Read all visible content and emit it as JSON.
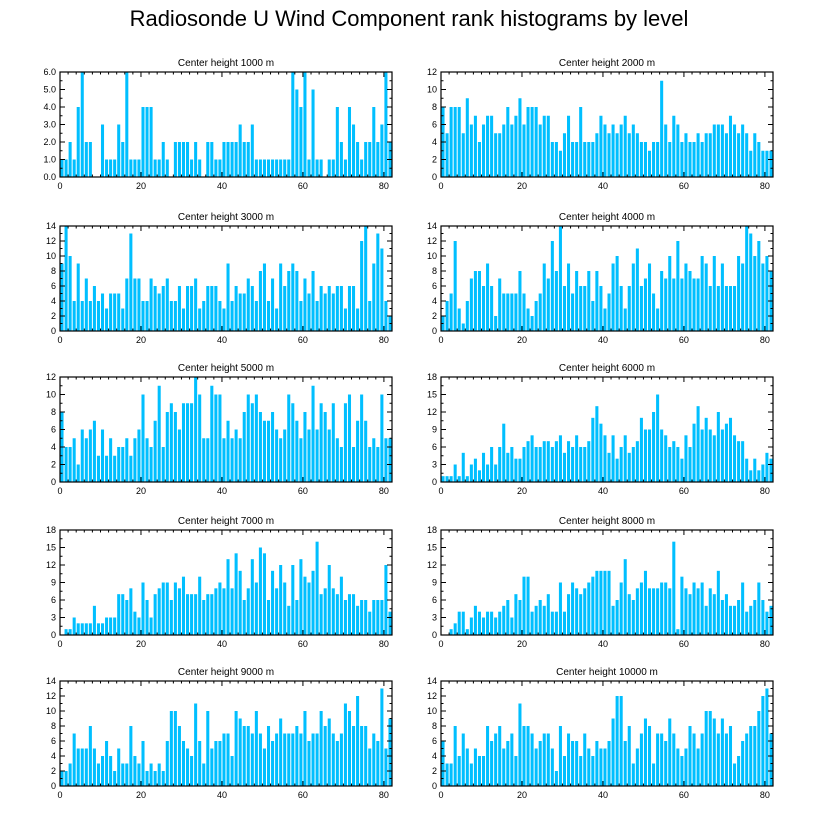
{
  "title": "Radiosonde U Wind Component rank histograms by level",
  "bar_color": "#00BFFF",
  "chart_data": [
    {
      "type": "bar",
      "title": "Center height 1000 m",
      "x": "rank 0-81",
      "ylim": [
        0,
        6
      ],
      "xticks": [
        0,
        20,
        40,
        60,
        80
      ],
      "yticks": [
        "0.0",
        "1.0",
        "2.0",
        "3.0",
        "4.0",
        "5.0",
        "6.0"
      ],
      "values": [
        1,
        1,
        2,
        1,
        4,
        6,
        2,
        2,
        0,
        0,
        3,
        1,
        1,
        1,
        3,
        2,
        6,
        1,
        1,
        1,
        4,
        4,
        4,
        1,
        1,
        2,
        1,
        0,
        2,
        2,
        2,
        2,
        1,
        2,
        1,
        0,
        2,
        2,
        1,
        1,
        2,
        2,
        2,
        2,
        3,
        2,
        2,
        3,
        1,
        1,
        1,
        1,
        1,
        1,
        1,
        1,
        1,
        6,
        5,
        4,
        6,
        1,
        5,
        1,
        1,
        0,
        1,
        1,
        4,
        2,
        1,
        4,
        3,
        2,
        1,
        2,
        2,
        4,
        2,
        3,
        6,
        2
      ]
    },
    {
      "type": "bar",
      "title": "Center height 2000 m",
      "x": "rank 0-81",
      "ylim": [
        0,
        12
      ],
      "xticks": [
        0,
        20,
        40,
        60,
        80
      ],
      "yticks": [
        "0",
        "2",
        "4",
        "6",
        "8",
        "10",
        "12"
      ],
      "values": [
        8,
        5,
        8,
        8,
        8,
        5,
        9,
        6,
        7,
        4,
        6,
        7,
        7,
        5,
        5,
        6,
        8,
        6,
        7,
        9,
        6,
        8,
        8,
        8,
        6,
        7,
        7,
        4,
        4,
        3,
        5,
        7,
        4,
        4,
        8,
        4,
        4,
        4,
        5,
        7,
        6,
        5,
        6,
        5,
        6,
        7,
        5,
        6,
        5,
        4,
        4,
        3,
        4,
        4,
        11,
        6,
        4,
        7,
        6,
        4,
        5,
        4,
        4,
        5,
        4,
        5,
        5,
        6,
        6,
        6,
        5,
        7,
        6,
        5,
        6,
        5,
        3,
        5,
        4,
        3,
        3,
        3
      ]
    },
    {
      "type": "bar",
      "title": "Center height 3000 m",
      "x": "rank 0-81",
      "ylim": [
        0,
        14
      ],
      "xticks": [
        0,
        20,
        40,
        60,
        80
      ],
      "yticks": [
        "0",
        "2",
        "4",
        "6",
        "8",
        "10",
        "12",
        "14"
      ],
      "values": [
        9,
        14,
        10,
        4,
        9,
        4,
        7,
        4,
        6,
        4,
        5,
        3,
        5,
        5,
        5,
        3,
        7,
        13,
        7,
        7,
        4,
        4,
        7,
        6,
        5,
        6,
        7,
        4,
        4,
        6,
        3,
        6,
        6,
        7,
        3,
        4,
        6,
        6,
        6,
        4,
        3,
        9,
        4,
        6,
        5,
        5,
        7,
        6,
        4,
        8,
        9,
        4,
        7,
        3,
        9,
        6,
        8,
        9,
        8,
        4,
        7,
        5,
        8,
        4,
        6,
        5,
        6,
        5,
        6,
        6,
        3,
        6,
        6,
        3,
        12,
        14,
        4,
        9,
        13,
        11,
        4,
        2
      ]
    },
    {
      "type": "bar",
      "title": "Center height 4000 m",
      "x": "rank 0-81",
      "ylim": [
        0,
        14
      ],
      "xticks": [
        0,
        20,
        40,
        60,
        80
      ],
      "yticks": [
        "0",
        "2",
        "4",
        "6",
        "8",
        "10",
        "12",
        "14"
      ],
      "values": [
        2,
        4,
        5,
        12,
        3,
        1,
        4,
        7,
        8,
        8,
        6,
        9,
        6,
        2,
        7,
        5,
        5,
        5,
        5,
        8,
        5,
        3,
        2,
        4,
        5,
        9,
        7,
        12,
        8,
        14,
        6,
        9,
        5,
        8,
        6,
        6,
        8,
        4,
        8,
        6,
        3,
        5,
        9,
        10,
        6,
        3,
        6,
        9,
        11,
        6,
        7,
        9,
        5,
        3,
        8,
        7,
        10,
        7,
        12,
        7,
        9,
        8,
        7,
        7,
        10,
        9,
        6,
        10,
        6,
        9,
        6,
        6,
        6,
        10,
        9,
        14,
        13,
        10,
        12,
        9,
        10,
        8
      ]
    },
    {
      "type": "bar",
      "title": "Center height 5000 m",
      "x": "rank 0-81",
      "ylim": [
        0,
        12
      ],
      "xticks": [
        0,
        20,
        40,
        60,
        80
      ],
      "yticks": [
        "0",
        "2",
        "4",
        "6",
        "8",
        "10",
        "12"
      ],
      "values": [
        8,
        4,
        4,
        5,
        2,
        6,
        5,
        6,
        7,
        3,
        6,
        3,
        5,
        3,
        4,
        4,
        5,
        3,
        5,
        6,
        10,
        5,
        4,
        7,
        11,
        4,
        8,
        9,
        8,
        6,
        9,
        9,
        9,
        12,
        10,
        5,
        5,
        11,
        10,
        10,
        5,
        7,
        5,
        6,
        5,
        8,
        10,
        9,
        10,
        8,
        7,
        7,
        8,
        6,
        5,
        6,
        10,
        9,
        7,
        5,
        8,
        6,
        11,
        6,
        9,
        8,
        6,
        9,
        5,
        4,
        9,
        10,
        4,
        7,
        10,
        7,
        4,
        5,
        4,
        10,
        5,
        5
      ]
    },
    {
      "type": "bar",
      "title": "Center height 6000 m",
      "x": "rank 0-81",
      "ylim": [
        0,
        18
      ],
      "xticks": [
        0,
        20,
        40,
        60,
        80
      ],
      "yticks": [
        "0",
        "3",
        "6",
        "9",
        "12",
        "15",
        "18"
      ],
      "values": [
        1,
        1,
        1,
        3,
        1,
        5,
        1,
        3,
        4,
        2,
        5,
        3,
        6,
        3,
        6,
        10,
        5,
        6,
        4,
        4,
        6,
        7,
        8,
        6,
        6,
        7,
        7,
        6,
        7,
        8,
        5,
        7,
        6,
        8,
        6,
        6,
        7,
        11,
        13,
        10,
        8,
        5,
        8,
        4,
        6,
        8,
        5,
        6,
        7,
        11,
        9,
        9,
        12,
        15,
        9,
        8,
        6,
        7,
        6,
        4,
        8,
        6,
        10,
        13,
        9,
        11,
        9,
        8,
        12,
        9,
        10,
        11,
        8,
        7,
        7,
        4,
        2,
        4,
        2,
        3,
        5,
        4
      ]
    },
    {
      "type": "bar",
      "title": "Center height 7000 m",
      "x": "rank 0-81",
      "ylim": [
        0,
        18
      ],
      "xticks": [
        0,
        20,
        40,
        60,
        80
      ],
      "yticks": [
        "0",
        "3",
        "6",
        "9",
        "12",
        "15",
        "18"
      ],
      "values": [
        0,
        1,
        1,
        3,
        2,
        2,
        2,
        2,
        5,
        2,
        2,
        3,
        3,
        3,
        7,
        7,
        6,
        8,
        4,
        3,
        9,
        6,
        3,
        7,
        8,
        9,
        9,
        6,
        9,
        8,
        10,
        7,
        7,
        7,
        10,
        6,
        7,
        7,
        8,
        9,
        8,
        13,
        8,
        14,
        11,
        6,
        8,
        13,
        9,
        15,
        14,
        6,
        11,
        8,
        12,
        9,
        5,
        12,
        6,
        13,
        10,
        9,
        11,
        16,
        7,
        8,
        12,
        8,
        7,
        10,
        6,
        7,
        7,
        5,
        6,
        6,
        4,
        6,
        6,
        6,
        12,
        4
      ]
    },
    {
      "type": "bar",
      "title": "Center height 8000 m",
      "x": "rank 0-81",
      "ylim": [
        0,
        18
      ],
      "xticks": [
        0,
        20,
        40,
        60,
        80
      ],
      "yticks": [
        "0",
        "3",
        "6",
        "9",
        "12",
        "15",
        "18"
      ],
      "values": [
        0,
        0,
        1,
        2,
        4,
        4,
        1,
        3,
        5,
        4,
        3,
        4,
        4,
        3,
        4,
        5,
        6,
        3,
        7,
        6,
        10,
        10,
        4,
        5,
        6,
        5,
        7,
        4,
        4,
        9,
        4,
        7,
        9,
        8,
        7,
        8,
        9,
        10,
        11,
        11,
        11,
        11,
        5,
        6,
        9,
        13,
        7,
        6,
        8,
        9,
        11,
        8,
        8,
        8,
        9,
        9,
        8,
        16,
        1,
        10,
        8,
        7,
        9,
        8,
        9,
        5,
        8,
        7,
        11,
        6,
        7,
        5,
        5,
        6,
        9,
        4,
        5,
        6,
        9,
        6,
        4,
        5
      ]
    },
    {
      "type": "bar",
      "title": "Center height 9000 m",
      "x": "rank 0-81",
      "ylim": [
        0,
        14
      ],
      "xticks": [
        0,
        20,
        40,
        60,
        80
      ],
      "yticks": [
        "0",
        "2",
        "4",
        "6",
        "8",
        "10",
        "12",
        "14"
      ],
      "values": [
        2,
        2,
        3,
        7,
        5,
        5,
        5,
        8,
        5,
        3,
        4,
        6,
        4,
        2,
        5,
        3,
        3,
        8,
        4,
        3,
        6,
        2,
        3,
        2,
        3,
        2,
        6,
        10,
        10,
        8,
        6,
        5,
        4,
        11,
        6,
        3,
        10,
        5,
        6,
        6,
        7,
        7,
        4,
        10,
        9,
        8,
        8,
        7,
        10,
        7,
        5,
        8,
        6,
        7,
        9,
        7,
        7,
        7,
        8,
        7,
        10,
        6,
        7,
        7,
        10,
        8,
        9,
        7,
        6,
        7,
        11,
        10,
        8,
        12,
        8,
        8,
        5,
        7,
        6,
        13,
        5,
        9
      ]
    },
    {
      "type": "bar",
      "title": "Center height 10000 m",
      "x": "rank 0-81",
      "ylim": [
        0,
        14
      ],
      "xticks": [
        0,
        20,
        40,
        60,
        80
      ],
      "yticks": [
        "0",
        "2",
        "4",
        "6",
        "8",
        "10",
        "12",
        "14"
      ],
      "values": [
        6,
        3,
        3,
        8,
        4,
        7,
        5,
        3,
        5,
        4,
        4,
        8,
        6,
        7,
        8,
        5,
        6,
        7,
        4,
        11,
        8,
        8,
        7,
        5,
        6,
        7,
        7,
        5,
        2,
        8,
        4,
        7,
        6,
        6,
        4,
        7,
        5,
        4,
        6,
        5,
        5,
        6,
        9,
        12,
        12,
        6,
        8,
        3,
        5,
        7,
        9,
        8,
        3,
        7,
        7,
        6,
        9,
        7,
        5,
        4,
        5,
        8,
        7,
        5,
        7,
        10,
        10,
        9,
        7,
        9,
        7,
        8,
        3,
        4,
        6,
        7,
        8,
        8,
        10,
        12,
        13,
        7
      ]
    }
  ]
}
